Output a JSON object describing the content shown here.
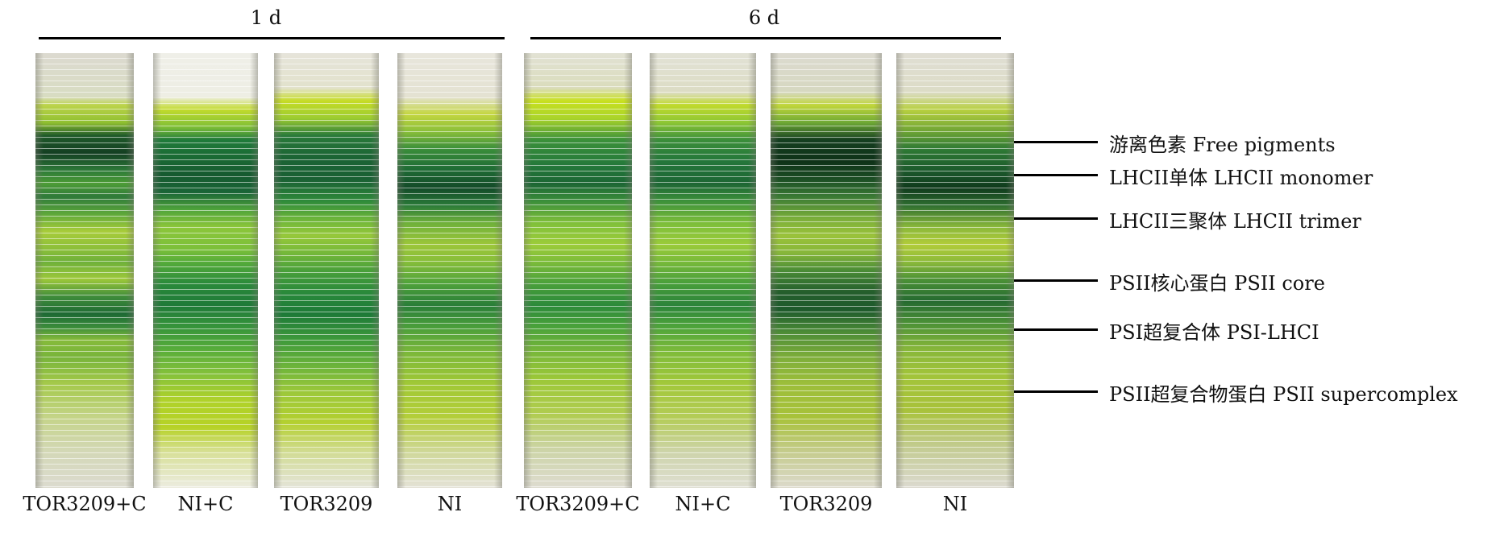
{
  "groups": [
    {
      "label": "1 d"
    },
    {
      "label": "6 d"
    }
  ],
  "lanes": [
    {
      "label": "TOR3209+C"
    },
    {
      "label": "NI+C"
    },
    {
      "label": "TOR3209"
    },
    {
      "label": "NI"
    },
    {
      "label": "TOR3209+C"
    },
    {
      "label": "NI+C"
    },
    {
      "label": "TOR3209"
    },
    {
      "label": "NI"
    }
  ],
  "markers": [
    {
      "label": "游离色素 Free pigments"
    },
    {
      "label": "LHCII单体 LHCII monomer"
    },
    {
      "label": "LHCII三聚体 LHCII trimer"
    },
    {
      "label": "PSII核心蛋白 PSII core"
    },
    {
      "label": "PSI超复合体 PSI-LHCI"
    },
    {
      "label": "PSII超复合物蛋白 PSII supercomplex"
    }
  ],
  "colors": {
    "gel_top": "#e8e6da",
    "yellow_green": "#c6dc2a",
    "mid_green": "#3f9a3a",
    "dark_green": "#0d4a22",
    "lime": "#a8cc1e"
  }
}
